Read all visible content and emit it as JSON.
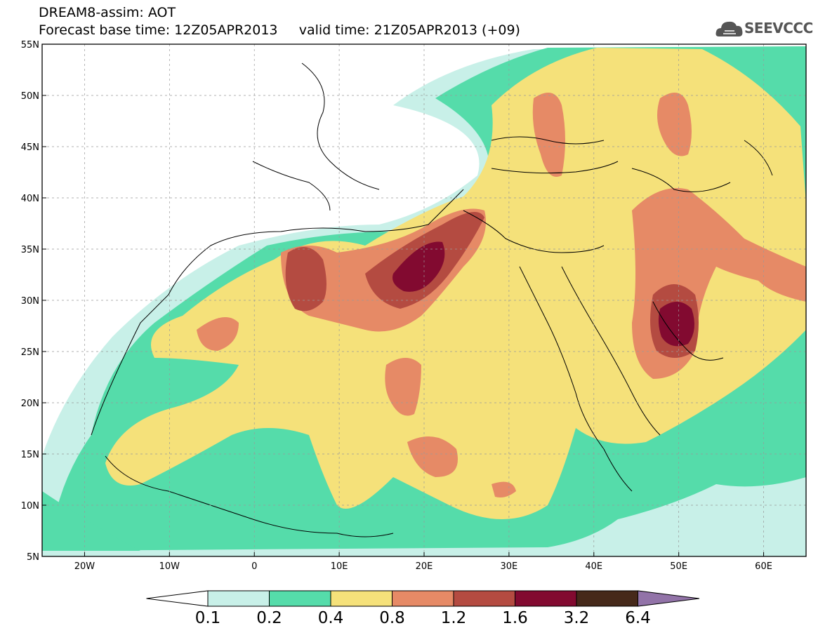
{
  "header": {
    "line1": "DREAM8-assim: AOT",
    "line2": "Forecast base time: 12Z05APR2013     valid time: 21Z05APR2013 (+09)"
  },
  "logo": {
    "text": "SEEVCCC",
    "icon": "cloud-logo-icon"
  },
  "map": {
    "lon_range": [
      -25,
      65
    ],
    "lat_range": [
      5,
      55
    ],
    "lon_ticks": [
      "20W",
      "10W",
      "0",
      "10E",
      "20E",
      "30E",
      "40E",
      "50E",
      "60E"
    ],
    "lat_ticks": [
      "55N",
      "50N",
      "45N",
      "40N",
      "35N",
      "30N",
      "25N",
      "20N",
      "15N",
      "10N",
      "5N"
    ],
    "grid": "dashed"
  },
  "colorbar": {
    "colors": [
      "#ffffff",
      "#c8f0e8",
      "#55dcaa",
      "#f5e17a",
      "#e68a66",
      "#b44b41",
      "#820a30",
      "#46291a",
      "#9273a8"
    ],
    "labels": [
      "0.1",
      "0.2",
      "0.4",
      "0.8",
      "1.2",
      "1.6",
      "3.2",
      "6.4"
    ]
  }
}
